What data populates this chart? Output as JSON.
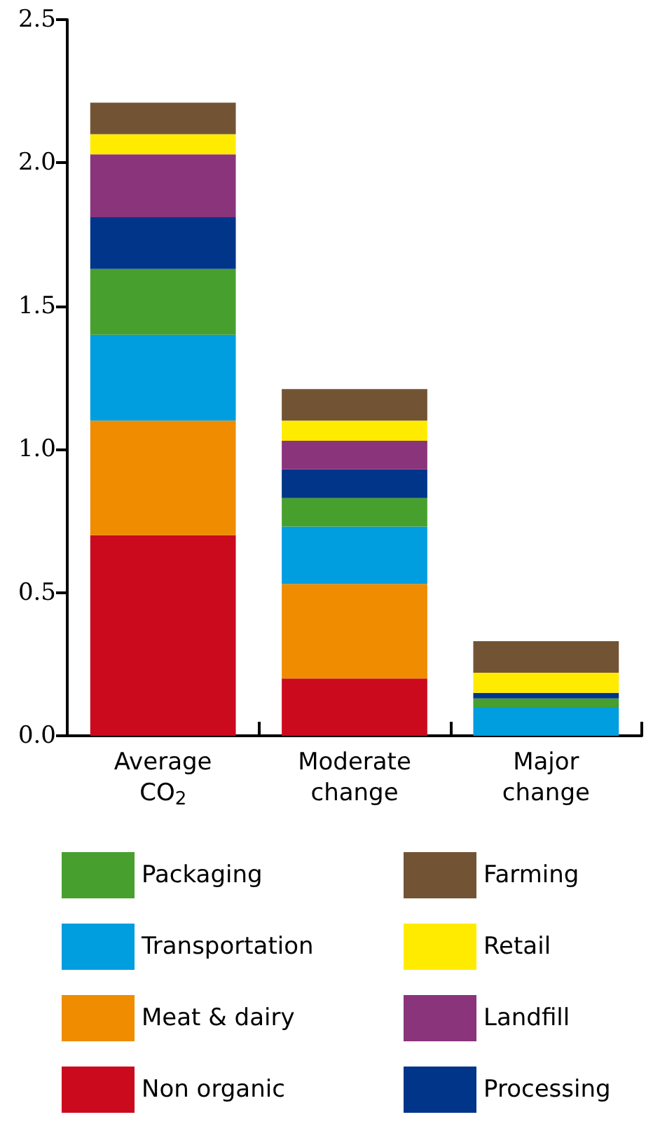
{
  "chart_data": {
    "type": "bar",
    "stacked": true,
    "categories": [
      "Average CO$_{2}$",
      "Moderate change",
      "Major change"
    ],
    "series": [
      {
        "name": "Non organic",
        "color": "#cc0a1e",
        "values": [
          0.7,
          0.2,
          0
        ]
      },
      {
        "name": "Meat & dairy",
        "color": "#ef8c00",
        "values": [
          0.4,
          0.33,
          0
        ]
      },
      {
        "name": "Transportation",
        "color": "#009ddf",
        "values": [
          0.3,
          0.2,
          0.1
        ]
      },
      {
        "name": "Packaging",
        "color": "#47a02e",
        "values": [
          0.23,
          0.1,
          0.03
        ]
      },
      {
        "name": "Processing",
        "color": "#003589",
        "values": [
          0.18,
          0.1,
          0.02
        ]
      },
      {
        "name": "Landfill",
        "color": "#8a347c",
        "values": [
          0.22,
          0.1,
          0
        ]
      },
      {
        "name": "Retail",
        "color": "#ffeb00",
        "values": [
          0.07,
          0.07,
          0.07
        ]
      },
      {
        "name": "Farming",
        "color": "#725435",
        "values": [
          0.11,
          0.11,
          0.11
        ]
      }
    ],
    "ylim": [
      0,
      2.5
    ],
    "yticks": [
      {
        "value": 0,
        "label": "0.0"
      },
      {
        "value": 0.5,
        "label": "0.5"
      },
      {
        "value": 1,
        "label": "1.0"
      },
      {
        "value": 1.5,
        "label": "1.5"
      },
      {
        "value": 2,
        "label": "2.0"
      },
      {
        "value": 2.5,
        "label": "2.5"
      }
    ],
    "grid": false,
    "legend": "bottom"
  }
}
